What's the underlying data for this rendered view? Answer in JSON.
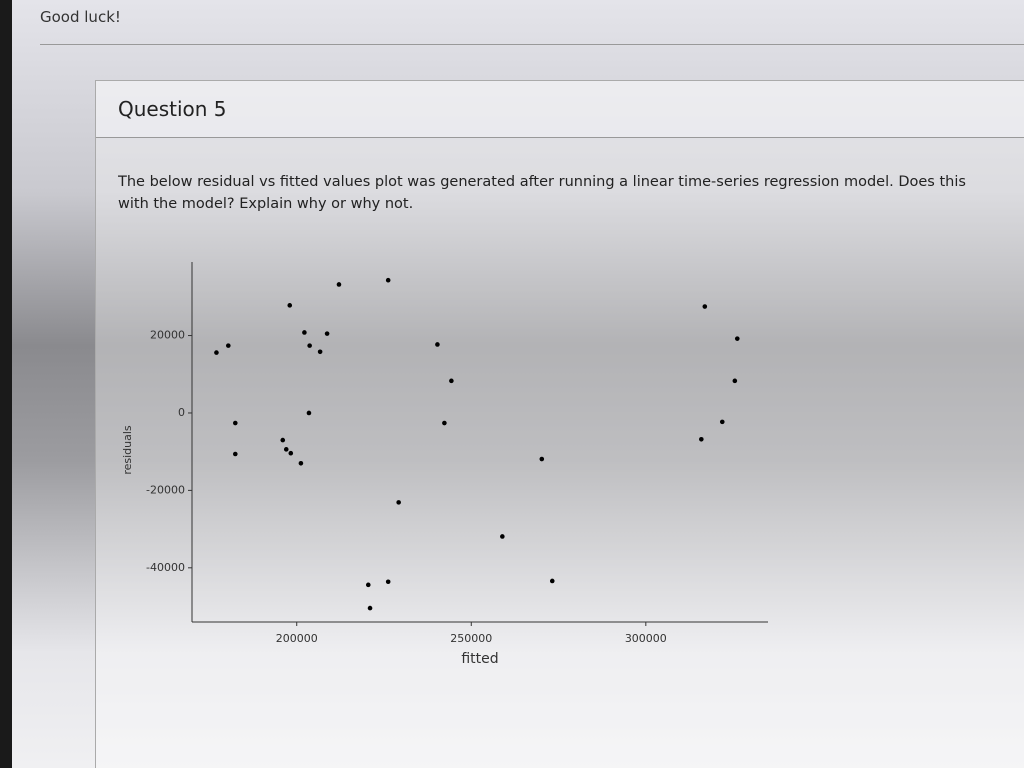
{
  "page": {
    "header": {
      "text": "Good luck!"
    },
    "question": {
      "title": "Question 5",
      "lines": [
        "The below residual vs fitted values plot was generated after running a linear time-series regression model. Does this",
        "with the model? Explain why or why not."
      ]
    }
  },
  "chart_data": {
    "type": "scatter",
    "color": "#000000",
    "xlabel": "fitted",
    "ylabel": "residuals",
    "x": [
      177000,
      180400,
      182400,
      182400,
      198000,
      196000,
      197000,
      198300,
      201200,
      202200,
      203700,
      206700,
      208700,
      203500,
      212100,
      226200,
      220500,
      221000,
      226200,
      229200,
      240300,
      244300,
      242300,
      258900,
      270200,
      273200,
      316900,
      315900,
      326200,
      321900,
      325500
    ],
    "values": [
      15600,
      17400,
      -2600,
      -10600,
      27800,
      -7000,
      -9400,
      -10400,
      -13000,
      20800,
      17400,
      15800,
      20500,
      0,
      33200,
      34300,
      -44400,
      -50400,
      -43600,
      -23100,
      17700,
      8300,
      -2600,
      -31900,
      -11900,
      -43400,
      27500,
      -6800,
      19200,
      -2300,
      8300
    ],
    "xlim": [
      170000,
      335000
    ],
    "xticks": [
      200000,
      250000,
      300000
    ],
    "ylim": [
      -54000,
      39000
    ],
    "yticks": [
      20000,
      0,
      -20000,
      -40000
    ]
  }
}
